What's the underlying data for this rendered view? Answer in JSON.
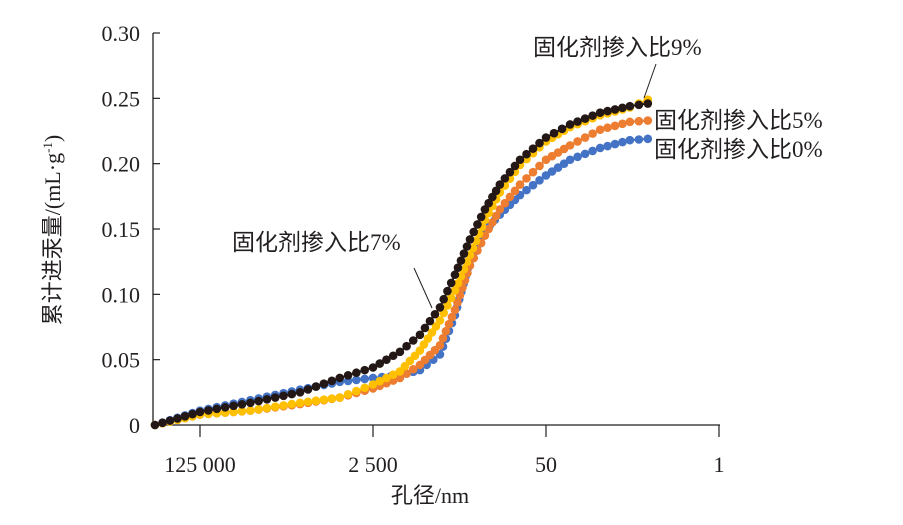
{
  "chart_data": {
    "type": "line",
    "title": "",
    "xlabel": "孔径/nm",
    "ylabel": "累计进汞量/(mL·g",
    "ylabel_sup": "-1",
    "ylabel_end": ")",
    "x_scale": "log-reversed",
    "xlim": [
      350000,
      1
    ],
    "ylim": [
      0,
      0.3
    ],
    "x_ticks": [
      125000,
      2500,
      50,
      1
    ],
    "x_tick_labels": [
      "125 000",
      "2 500",
      "50",
      "1"
    ],
    "y_ticks": [
      0,
      0.05,
      0.1,
      0.15,
      0.2,
      0.25,
      0.3
    ],
    "y_tick_labels": [
      "0",
      "0.05",
      "0.10",
      "0.15",
      "0.20",
      "0.25",
      "0.30"
    ],
    "grid": false,
    "x": [
      346000,
      125000,
      40000,
      13000,
      5300,
      2500,
      1360,
      865,
      550,
      392,
      279,
      199,
      142,
      90,
      50,
      29,
      14.7,
      7.5,
      5
    ],
    "series": [
      {
        "name": "固化剂掺入比0%",
        "color": "#4472c4",
        "values": [
          0,
          0.011,
          0.019,
          0.027,
          0.033,
          0.036,
          0.038,
          0.042,
          0.054,
          0.084,
          0.126,
          0.149,
          0.161,
          0.176,
          0.191,
          0.203,
          0.212,
          0.218,
          0.219
        ]
      },
      {
        "name": "固化剂掺入比5%",
        "color": "#ed7d31",
        "values": [
          0,
          0.008,
          0.011,
          0.016,
          0.021,
          0.028,
          0.036,
          0.046,
          0.061,
          0.088,
          0.122,
          0.145,
          0.165,
          0.184,
          0.203,
          0.214,
          0.226,
          0.232,
          0.233
        ]
      },
      {
        "name": "固化剂掺入比7%",
        "color": "#231815",
        "values": [
          0,
          0.01,
          0.017,
          0.025,
          0.036,
          0.044,
          0.056,
          0.069,
          0.09,
          0.115,
          0.142,
          0.165,
          0.184,
          0.203,
          0.22,
          0.23,
          0.239,
          0.244,
          0.246
        ]
      },
      {
        "name": "固化剂掺入比9%",
        "color": "#ffc000",
        "values": [
          0,
          0.008,
          0.011,
          0.017,
          0.021,
          0.031,
          0.041,
          0.057,
          0.08,
          0.103,
          0.13,
          0.157,
          0.178,
          0.199,
          0.217,
          0.228,
          0.237,
          0.243,
          0.249
        ]
      }
    ],
    "annotations": [
      "固化剂掺入比9%",
      "固化剂掺入比5%",
      "固化剂掺入比0%",
      "固化剂掺入比7%"
    ]
  }
}
